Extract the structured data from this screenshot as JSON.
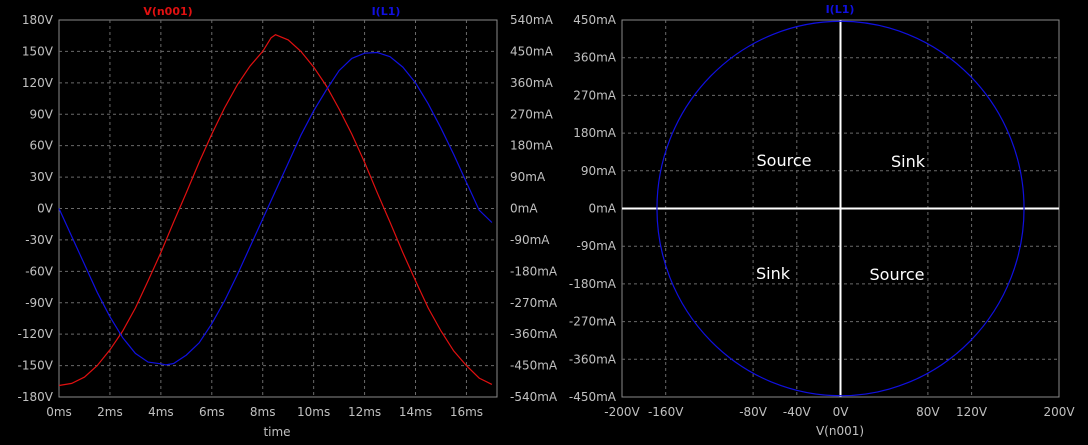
{
  "chart_data": [
    {
      "type": "line",
      "x_label": "time",
      "x_ticks": [
        "0ms",
        "2ms",
        "4ms",
        "6ms",
        "8ms",
        "10ms",
        "12ms",
        "14ms",
        "16ms"
      ],
      "x_tick_values": [
        0,
        2,
        4,
        6,
        8,
        10,
        12,
        14,
        16
      ],
      "x_range": [
        0,
        17.2
      ],
      "y_left_ticks": [
        "180V",
        "150V",
        "120V",
        "90V",
        "60V",
        "30V",
        "0V",
        "-30V",
        "-60V",
        "-90V",
        "-120V",
        "-150V",
        "-180V"
      ],
      "y_left_range": [
        -180,
        180
      ],
      "y_right_ticks": [
        "540mA",
        "450mA",
        "360mA",
        "270mA",
        "180mA",
        "90mA",
        "0mA",
        "-90mA",
        "-180mA",
        "-270mA",
        "-360mA",
        "-450mA",
        "-540mA"
      ],
      "y_right_range": [
        -540,
        540
      ],
      "grid": true,
      "series": [
        {
          "name": "V(n001)",
          "color": "#e01010",
          "axis": "left",
          "x": [
            0,
            0.5,
            1,
            1.5,
            2,
            2.5,
            3,
            3.5,
            4,
            4.5,
            5,
            5.5,
            6,
            6.5,
            7,
            7.5,
            8,
            8.33,
            8.5,
            9,
            9.5,
            10,
            10.5,
            11,
            11.5,
            12,
            12.5,
            13,
            13.5,
            14,
            14.5,
            15,
            15.5,
            16,
            16.5,
            17
          ],
          "y": [
            -169,
            -167,
            -161,
            -150,
            -135,
            -117,
            -95,
            -69,
            -42,
            -13,
            15,
            44,
            71,
            96,
            118,
            136,
            150,
            163,
            166,
            161,
            150,
            135,
            117,
            95,
            71,
            44,
            15,
            -13,
            -42,
            -69,
            -95,
            -117,
            -136,
            -150,
            -162,
            -168
          ]
        },
        {
          "name": "I(L1)",
          "color": "#1010e0",
          "axis": "right",
          "x": [
            0,
            0.5,
            1,
            1.5,
            2,
            2.5,
            3,
            3.5,
            4,
            4.2,
            4.5,
            5,
            5.5,
            6,
            6.5,
            7,
            7.5,
            8,
            8.5,
            9,
            9.5,
            10,
            10.5,
            11,
            11.5,
            12,
            12.5,
            13,
            13.5,
            14,
            14.5,
            15,
            15.5,
            16,
            16.5,
            17
          ],
          "y": [
            0,
            -80,
            -160,
            -240,
            -310,
            -370,
            -415,
            -440,
            -445,
            -448,
            -444,
            -420,
            -385,
            -330,
            -265,
            -190,
            -110,
            -30,
            50,
            130,
            210,
            280,
            340,
            395,
            430,
            445,
            447,
            435,
            405,
            360,
            300,
            230,
            155,
            75,
            -5,
            -40
          ]
        }
      ]
    },
    {
      "type": "scatter",
      "title": "I(L1)",
      "x_label": "V(n001)",
      "x_ticks": [
        "-200V",
        "-160V",
        "-80V",
        "-40V",
        "0V",
        "80V",
        "120V",
        "200V"
      ],
      "x_tick_values": [
        -200,
        -160,
        -80,
        -40,
        0,
        80,
        120,
        200
      ],
      "x_range": [
        -200,
        200
      ],
      "y_ticks": [
        "450mA",
        "360mA",
        "270mA",
        "180mA",
        "90mA",
        "0mA",
        "-90mA",
        "-180mA",
        "-270mA",
        "-360mA",
        "-450mA"
      ],
      "y_range": [
        -450,
        450
      ],
      "grid": true,
      "series": [
        {
          "name": "I(L1) vs V(n001)",
          "color": "#1010e0",
          "shape": "ellipse",
          "x_amplitude": 168,
          "y_amplitude": 447
        }
      ],
      "quadrant_labels": {
        "top_left": "Source",
        "top_right": "Sink",
        "bottom_left": "Sink",
        "bottom_right": "Source"
      }
    }
  ]
}
